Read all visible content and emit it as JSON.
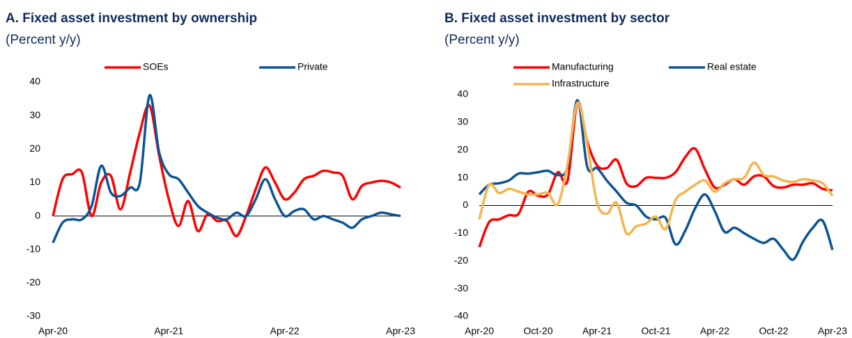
{
  "chart_data": [
    {
      "type": "line",
      "title": "A. Fixed asset investment by ownership",
      "subtitle": "(Percent y/y)",
      "categories": [
        "Apr-20",
        null,
        null,
        null,
        null,
        null,
        null,
        null,
        null,
        null,
        null,
        null,
        "Apr-21",
        null,
        null,
        null,
        null,
        null,
        null,
        null,
        null,
        null,
        null,
        null,
        "Apr-22",
        null,
        null,
        null,
        null,
        null,
        null,
        null,
        null,
        null,
        null,
        null,
        "Apr-23"
      ],
      "series": [
        {
          "name": "SOEs",
          "color": "#ff0000",
          "values": [
            0,
            11,
            12.5,
            13,
            0,
            10,
            12,
            2,
            13,
            25,
            33,
            18,
            5,
            -3,
            4.5,
            -4.5,
            0.5,
            -1.5,
            -1.5,
            -6,
            0,
            8,
            14.5,
            10,
            5,
            7,
            11,
            12,
            13.5,
            13,
            12,
            5,
            9,
            10,
            10.5,
            10,
            8.5
          ]
        },
        {
          "name": "Private",
          "color": "#0b5394",
          "values": [
            -8,
            -2,
            -1,
            -1,
            3,
            15,
            7,
            6,
            8.5,
            10,
            36,
            19,
            12.5,
            11,
            7,
            3,
            1,
            -0.5,
            -1,
            1,
            0,
            5,
            11,
            5,
            0,
            1.5,
            2,
            -1,
            0,
            -1,
            -2,
            -3.5,
            -1,
            0,
            1,
            0.5,
            0
          ]
        }
      ],
      "ylim": [
        -30,
        40
      ],
      "yticks": [
        -30,
        -20,
        -10,
        0,
        10,
        20,
        30,
        40
      ],
      "grid": false
    },
    {
      "type": "line",
      "title": "B. Fixed asset investment by sector",
      "subtitle": "(Percent y/y)",
      "categories": [
        "Apr-20",
        null,
        null,
        null,
        null,
        null,
        "Oct-20",
        null,
        null,
        null,
        null,
        null,
        "Apr-21",
        null,
        null,
        null,
        null,
        null,
        "Oct-21",
        null,
        null,
        null,
        null,
        null,
        "Apr-22",
        null,
        null,
        null,
        null,
        null,
        "Oct-22",
        null,
        null,
        null,
        null,
        null,
        "Apr-23"
      ],
      "series": [
        {
          "name": "Manufacturing",
          "color": "#ff0000",
          "values": [
            -15,
            -6,
            -5,
            -3.5,
            -3,
            5,
            3.5,
            4,
            12,
            9,
            37,
            23,
            14.5,
            13.5,
            16.5,
            8,
            7,
            10,
            10,
            10,
            12,
            17.5,
            20.5,
            13,
            6.5,
            7.5,
            9.5,
            7.5,
            10.5,
            10.5,
            7,
            6.5,
            7.5,
            7.5,
            8,
            6,
            5.5
          ]
        },
        {
          "name": "Real estate",
          "color": "#0b5394",
          "values": [
            4,
            7.5,
            8,
            9,
            11.5,
            11.5,
            12,
            12.5,
            11,
            14,
            38,
            14,
            13.5,
            9,
            5,
            1,
            0,
            -4,
            -5,
            -4.5,
            -14,
            -9,
            -1,
            4,
            -2,
            -9.5,
            -8,
            -10,
            -12,
            -13.5,
            -12,
            -16,
            -19.5,
            -13,
            -8,
            -5.5,
            -16
          ]
        },
        {
          "name": "Infrastructure",
          "color": "#f6b44f",
          "values": [
            -5,
            7.5,
            4.5,
            6,
            5,
            4,
            4,
            4.5,
            0.5,
            15,
            37,
            22,
            1,
            -3,
            1,
            -10,
            -7.5,
            -6.5,
            -4,
            -8.5,
            2,
            5,
            7.5,
            9,
            5,
            8,
            9.5,
            10,
            15.5,
            11,
            10.5,
            9,
            8.5,
            9.5,
            9,
            8,
            3.5
          ]
        }
      ],
      "ylim": [
        -40,
        40
      ],
      "yticks": [
        -40,
        -30,
        -20,
        -10,
        0,
        10,
        20,
        30,
        40
      ],
      "grid": false
    }
  ]
}
